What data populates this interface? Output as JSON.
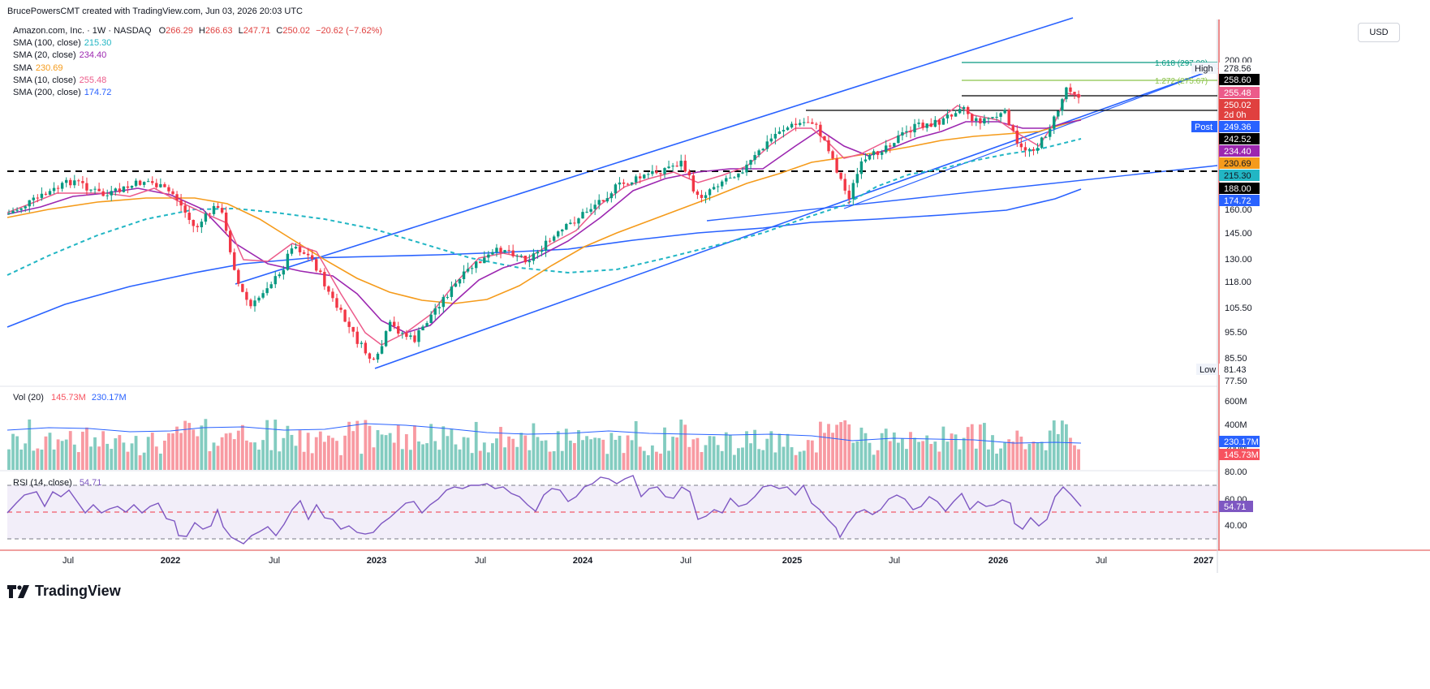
{
  "credit": "BrucePowersCMT created with TradingView.com, Jun 03, 2026 20:03 UTC",
  "brand": "TradingView",
  "currency": "USD",
  "legend": {
    "title": "Amazon.com, Inc. · 1W · NASDAQ",
    "open_label": "O",
    "open": "266.29",
    "high_label": "H",
    "high": "266.63",
    "low_label": "L",
    "low": "247.71",
    "close_label": "C",
    "close": "250.02",
    "change": "−20.62 (−7.62%)",
    "indicators": [
      {
        "label": "SMA (100, close)",
        "value": "215.30",
        "color": "#22b6c4"
      },
      {
        "label": "SMA (20, close)",
        "value": "234.40",
        "color": "#9c27b0"
      },
      {
        "label": "SMA",
        "value": "230.69",
        "color": "#f59b1b"
      },
      {
        "label": "SMA (10, close)",
        "value": "255.48",
        "color": "#ec5b8a"
      },
      {
        "label": "SMA (200, close)",
        "value": "174.72",
        "color": "#2962ff"
      }
    ]
  },
  "volume_legend": {
    "label": "Vol (20)",
    "value1": "145.73M",
    "value1_color": "#f7525f",
    "value2": "230.17M",
    "value2_color": "#2962ff"
  },
  "rsi_legend": {
    "label": "RSI (14, close)",
    "value": "54.71",
    "color": "#7e57c2"
  },
  "chart_data": [
    {
      "type": "candlestick",
      "title": "Amazon.com, Inc. · 1W · NASDAQ",
      "x_ticks": [
        "Jul",
        "2022",
        "Jul",
        "2023",
        "Jul",
        "2024",
        "Jul",
        "2025",
        "Jul",
        "2026",
        "Jul",
        "2027"
      ],
      "y_ticks": [
        77.5,
        85.5,
        95.5,
        105.5,
        118.0,
        130.0,
        145.0,
        160.0,
        200.0
      ],
      "price_scale": "log",
      "ylim": [
        76,
        210
      ],
      "price_labels": [
        {
          "text": "High",
          "value": "278.56",
          "bg": "#ffffff",
          "fg": "#131722"
        },
        {
          "text": "",
          "value": "258.60",
          "bg": "#000000",
          "fg": "#ffffff"
        },
        {
          "text": "",
          "value": "255.48",
          "bg": "#ec5b8a",
          "fg": "#ffffff"
        },
        {
          "text": "",
          "value": "250.02",
          "sub": "2d 0h",
          "bg": "#e0403f",
          "fg": "#ffffff"
        },
        {
          "text": "Post",
          "value": "249.36",
          "bg": "#2962ff",
          "fg": "#ffffff"
        },
        {
          "text": "",
          "value": "242.52",
          "bg": "#000000",
          "fg": "#ffffff"
        },
        {
          "text": "",
          "value": "234.40",
          "bg": "#9c27b0",
          "fg": "#ffffff"
        },
        {
          "text": "",
          "value": "230.69",
          "bg": "#f59b1b",
          "fg": "#131722"
        },
        {
          "text": "",
          "value": "215.30",
          "bg": "#22b6c4",
          "fg": "#131722"
        },
        {
          "text": "",
          "value": "188.00",
          "bg": "#000000",
          "fg": "#ffffff"
        },
        {
          "text": "",
          "value": "174.72",
          "bg": "#2962ff",
          "fg": "#ffffff"
        },
        {
          "text": "Low",
          "value": "81.43",
          "bg": "#ffffff",
          "fg": "#131722"
        }
      ],
      "fib_levels": [
        {
          "label": "1.618 (297.90)",
          "color": "#089981"
        },
        {
          "label": "1.272 (275.67)",
          "color": "#8bc34a"
        }
      ],
      "series": [
        {
          "name": "SMA (10, close)",
          "color": "#ec5b8a"
        },
        {
          "name": "SMA (20, close)",
          "color": "#9c27b0"
        },
        {
          "name": "SMA",
          "color": "#f59b1b"
        },
        {
          "name": "SMA (100, close)",
          "color": "#22b6c4"
        },
        {
          "name": "SMA (200, close)",
          "color": "#2962ff"
        }
      ]
    },
    {
      "type": "bar",
      "title": "Vol (20)",
      "y_ticks": [
        "600M",
        "400M",
        "200M"
      ],
      "ylim": [
        0,
        700
      ]
    },
    {
      "type": "line",
      "title": "RSI (14, close)",
      "y_ticks": [
        80,
        60,
        40
      ],
      "ylim": [
        20,
        90
      ],
      "bands": [
        30,
        50,
        70
      ]
    }
  ]
}
